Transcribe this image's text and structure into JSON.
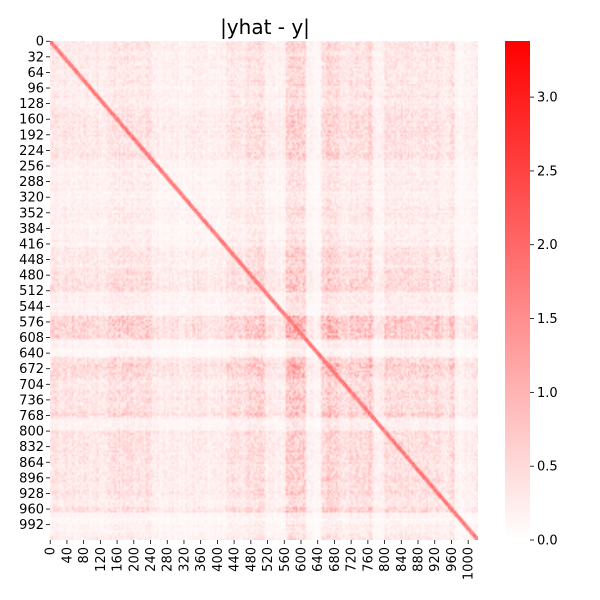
{
  "chart_data": {
    "type": "heatmap",
    "title": "|yhat - y|",
    "xlabel": "",
    "ylabel": "",
    "matrix_size": [
      1024,
      1024
    ],
    "x_tick_labels": [
      "0",
      "40",
      "80",
      "120",
      "160",
      "200",
      "240",
      "280",
      "320",
      "360",
      "400",
      "440",
      "480",
      "520",
      "560",
      "600",
      "640",
      "680",
      "720",
      "760",
      "800",
      "840",
      "880",
      "920",
      "960",
      "1000"
    ],
    "y_tick_labels": [
      "0",
      "32",
      "64",
      "96",
      "128",
      "160",
      "192",
      "224",
      "256",
      "288",
      "320",
      "352",
      "384",
      "416",
      "448",
      "480",
      "512",
      "544",
      "576",
      "608",
      "640",
      "672",
      "704",
      "736",
      "768",
      "800",
      "832",
      "864",
      "896",
      "928",
      "960",
      "992"
    ],
    "colorbar": {
      "range": [
        0,
        3.38
      ],
      "ticks": [
        0.0,
        0.5,
        1.0,
        1.5,
        2.0,
        2.5,
        3.0
      ],
      "tick_labels": [
        "0.0",
        "0.5",
        "1.0",
        "1.5",
        "2.0",
        "2.5",
        "3.0"
      ],
      "color_low": "#ffffff",
      "color_high": "#ff0000"
    },
    "diagonal_highlight": "stronger values along the main diagonal",
    "pattern": "symmetric block/plaid texture; typical values 0.3-1.5"
  }
}
